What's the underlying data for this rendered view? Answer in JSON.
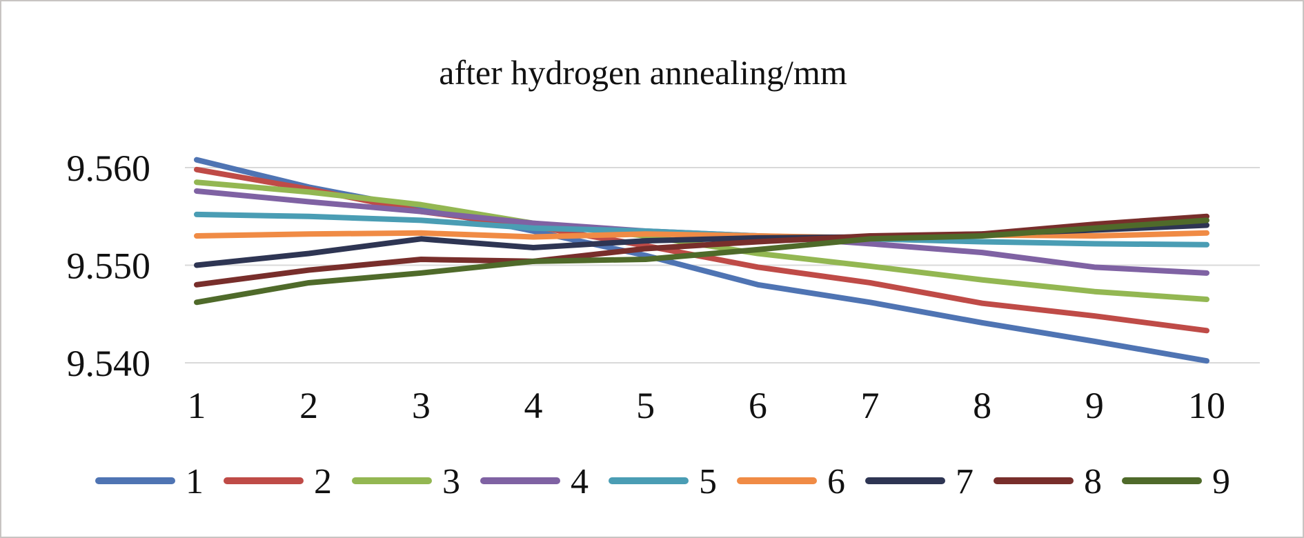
{
  "chart_data": {
    "type": "line",
    "title": "after hydrogen annealing/mm",
    "xlabel": "",
    "ylabel": "",
    "x": [
      1,
      2,
      3,
      4,
      5,
      6,
      7,
      8,
      9,
      10
    ],
    "x_tick_labels": [
      "1",
      "2",
      "3",
      "4",
      "5",
      "6",
      "7",
      "8",
      "9",
      "10"
    ],
    "ylim": [
      9.54,
      9.56
    ],
    "y_ticks": [
      9.56,
      9.55,
      9.54
    ],
    "y_tick_labels": [
      "9.560",
      "9.550",
      "9.540"
    ],
    "grid": true,
    "legend_position": "bottom",
    "series": [
      {
        "name": "1",
        "color": "#4f74b3",
        "values": [
          9.5608,
          9.558,
          9.5558,
          9.5535,
          9.551,
          9.548,
          9.5462,
          9.5441,
          9.5422,
          9.5402
        ]
      },
      {
        "name": "2",
        "color": "#bf4b47",
        "values": [
          9.5598,
          9.5578,
          9.5555,
          9.554,
          9.552,
          9.5498,
          9.5482,
          9.5461,
          9.5448,
          9.5433
        ]
      },
      {
        "name": "3",
        "color": "#93b752",
        "values": [
          9.5585,
          9.5575,
          9.5562,
          9.5543,
          9.553,
          9.5512,
          9.5499,
          9.5485,
          9.5473,
          9.5465
        ]
      },
      {
        "name": "4",
        "color": "#7f62a3",
        "values": [
          9.5576,
          9.5565,
          9.5555,
          9.5543,
          9.5535,
          9.553,
          9.5522,
          9.5513,
          9.5498,
          9.5492
        ]
      },
      {
        "name": "5",
        "color": "#4a9db4",
        "values": [
          9.5552,
          9.555,
          9.5546,
          9.5538,
          9.5535,
          9.553,
          9.5527,
          9.5524,
          9.5522,
          9.5521
        ]
      },
      {
        "name": "6",
        "color": "#f08b45",
        "values": [
          9.553,
          9.5532,
          9.5533,
          9.5529,
          9.5532,
          9.553,
          9.5528,
          9.5531,
          9.553,
          9.5533
        ]
      },
      {
        "name": "7",
        "color": "#2e3553",
        "values": [
          9.55,
          9.5512,
          9.5527,
          9.5518,
          9.5525,
          9.5528,
          9.5529,
          9.5532,
          9.5536,
          9.5541
        ]
      },
      {
        "name": "8",
        "color": "#782e2b",
        "values": [
          9.548,
          9.5495,
          9.5506,
          9.5504,
          9.5517,
          9.5524,
          9.553,
          9.5532,
          9.5542,
          9.555
        ]
      },
      {
        "name": "9",
        "color": "#4f6a2a",
        "values": [
          9.5462,
          9.5482,
          9.5492,
          9.5504,
          9.5506,
          9.5516,
          9.5527,
          9.553,
          9.5538,
          9.5546
        ]
      }
    ]
  }
}
